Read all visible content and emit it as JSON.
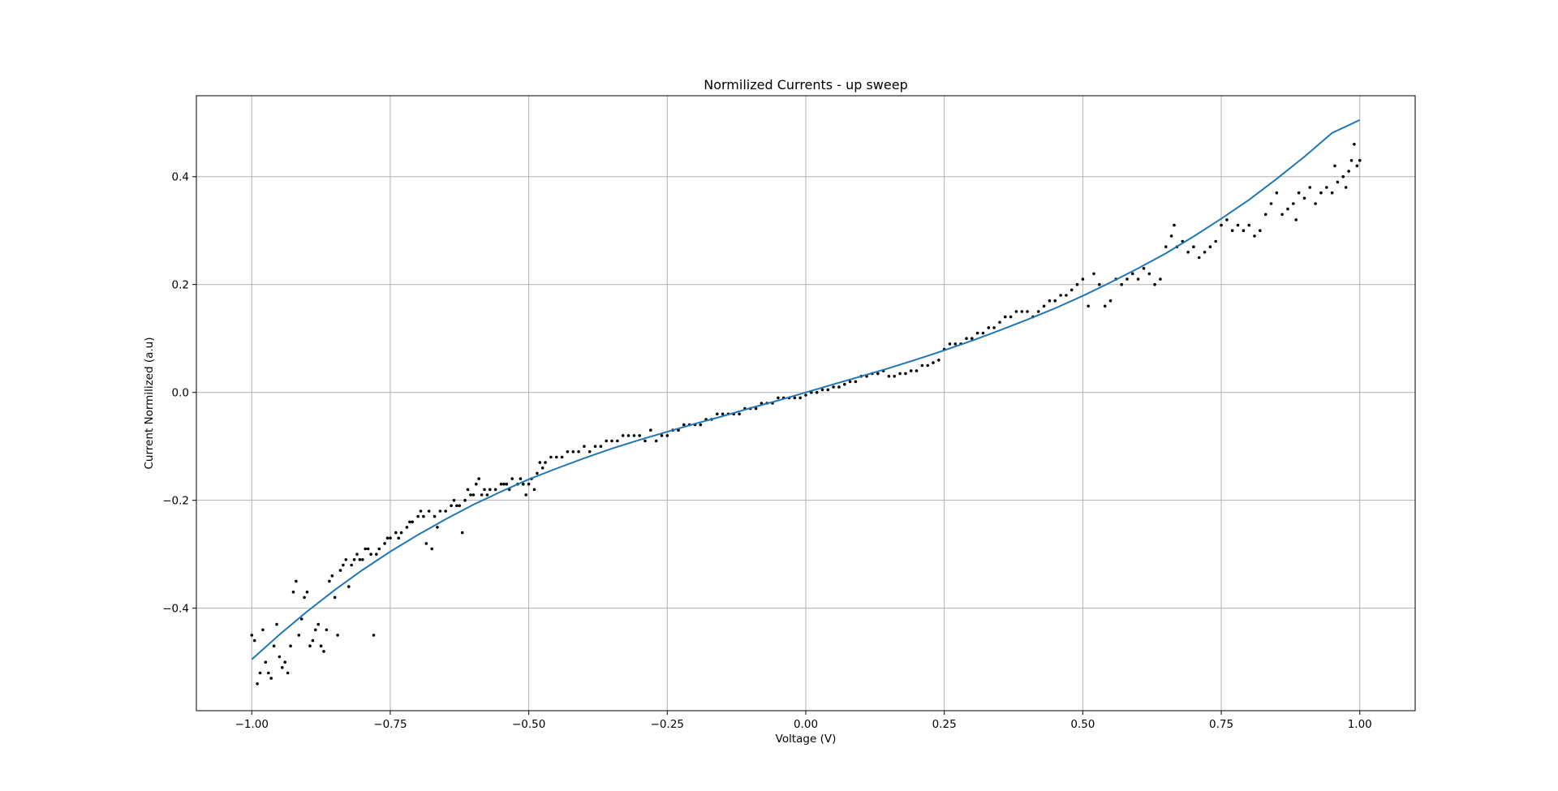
{
  "chart_data": {
    "type": "scatter",
    "title": "Normilized Currents - up sweep",
    "xlabel": "Voltage (V)",
    "ylabel": "Current Normilized (a.u)",
    "xlim": [
      -1.1,
      1.1
    ],
    "ylim": [
      -0.59,
      0.55
    ],
    "grid": true,
    "x_ticks": [
      {
        "value": -1.0,
        "label": "−1.00"
      },
      {
        "value": -0.75,
        "label": "−0.75"
      },
      {
        "value": -0.5,
        "label": "−0.50"
      },
      {
        "value": -0.25,
        "label": "−0.25"
      },
      {
        "value": 0.0,
        "label": "0.00"
      },
      {
        "value": 0.25,
        "label": "0.25"
      },
      {
        "value": 0.5,
        "label": "0.50"
      },
      {
        "value": 0.75,
        "label": "0.75"
      },
      {
        "value": 1.0,
        "label": "1.00"
      }
    ],
    "y_ticks": [
      {
        "value": -0.4,
        "label": "−0.4"
      },
      {
        "value": -0.2,
        "label": "−0.2"
      },
      {
        "value": 0.0,
        "label": "0.0"
      },
      {
        "value": 0.2,
        "label": "0.2"
      },
      {
        "value": 0.4,
        "label": "0.4"
      }
    ],
    "series": [
      {
        "kind": "scatter",
        "color": "#000000",
        "points": [
          [
            -1.0,
            -0.45
          ],
          [
            -0.995,
            -0.46
          ],
          [
            -0.99,
            -0.54
          ],
          [
            -0.985,
            -0.52
          ],
          [
            -0.98,
            -0.44
          ],
          [
            -0.975,
            -0.5
          ],
          [
            -0.97,
            -0.52
          ],
          [
            -0.965,
            -0.53
          ],
          [
            -0.96,
            -0.47
          ],
          [
            -0.955,
            -0.43
          ],
          [
            -0.95,
            -0.49
          ],
          [
            -0.945,
            -0.51
          ],
          [
            -0.94,
            -0.5
          ],
          [
            -0.935,
            -0.52
          ],
          [
            -0.93,
            -0.47
          ],
          [
            -0.925,
            -0.37
          ],
          [
            -0.92,
            -0.35
          ],
          [
            -0.915,
            -0.45
          ],
          [
            -0.91,
            -0.42
          ],
          [
            -0.905,
            -0.38
          ],
          [
            -0.9,
            -0.37
          ],
          [
            -0.895,
            -0.47
          ],
          [
            -0.89,
            -0.46
          ],
          [
            -0.885,
            -0.44
          ],
          [
            -0.88,
            -0.43
          ],
          [
            -0.875,
            -0.47
          ],
          [
            -0.87,
            -0.48
          ],
          [
            -0.865,
            -0.44
          ],
          [
            -0.86,
            -0.35
          ],
          [
            -0.855,
            -0.34
          ],
          [
            -0.85,
            -0.38
          ],
          [
            -0.845,
            -0.45
          ],
          [
            -0.84,
            -0.33
          ],
          [
            -0.835,
            -0.32
          ],
          [
            -0.83,
            -0.31
          ],
          [
            -0.825,
            -0.36
          ],
          [
            -0.82,
            -0.32
          ],
          [
            -0.815,
            -0.31
          ],
          [
            -0.81,
            -0.3
          ],
          [
            -0.805,
            -0.31
          ],
          [
            -0.8,
            -0.31
          ],
          [
            -0.795,
            -0.29
          ],
          [
            -0.79,
            -0.29
          ],
          [
            -0.785,
            -0.3
          ],
          [
            -0.78,
            -0.45
          ],
          [
            -0.775,
            -0.3
          ],
          [
            -0.77,
            -0.29
          ],
          [
            -0.76,
            -0.28
          ],
          [
            -0.755,
            -0.27
          ],
          [
            -0.75,
            -0.27
          ],
          [
            -0.74,
            -0.26
          ],
          [
            -0.735,
            -0.27
          ],
          [
            -0.73,
            -0.26
          ],
          [
            -0.72,
            -0.25
          ],
          [
            -0.715,
            -0.24
          ],
          [
            -0.71,
            -0.24
          ],
          [
            -0.7,
            -0.23
          ],
          [
            -0.695,
            -0.22
          ],
          [
            -0.69,
            -0.23
          ],
          [
            -0.685,
            -0.28
          ],
          [
            -0.68,
            -0.22
          ],
          [
            -0.675,
            -0.29
          ],
          [
            -0.67,
            -0.23
          ],
          [
            -0.665,
            -0.25
          ],
          [
            -0.66,
            -0.22
          ],
          [
            -0.65,
            -0.22
          ],
          [
            -0.64,
            -0.21
          ],
          [
            -0.635,
            -0.2
          ],
          [
            -0.63,
            -0.21
          ],
          [
            -0.625,
            -0.21
          ],
          [
            -0.62,
            -0.26
          ],
          [
            -0.615,
            -0.2
          ],
          [
            -0.61,
            -0.18
          ],
          [
            -0.605,
            -0.19
          ],
          [
            -0.6,
            -0.19
          ],
          [
            -0.595,
            -0.17
          ],
          [
            -0.59,
            -0.16
          ],
          [
            -0.585,
            -0.19
          ],
          [
            -0.58,
            -0.18
          ],
          [
            -0.575,
            -0.19
          ],
          [
            -0.57,
            -0.18
          ],
          [
            -0.56,
            -0.18
          ],
          [
            -0.55,
            -0.17
          ],
          [
            -0.545,
            -0.17
          ],
          [
            -0.54,
            -0.17
          ],
          [
            -0.535,
            -0.18
          ],
          [
            -0.53,
            -0.16
          ],
          [
            -0.52,
            -0.17
          ],
          [
            -0.515,
            -0.16
          ],
          [
            -0.51,
            -0.17
          ],
          [
            -0.505,
            -0.19
          ],
          [
            -0.5,
            -0.17
          ],
          [
            -0.495,
            -0.16
          ],
          [
            -0.49,
            -0.18
          ],
          [
            -0.485,
            -0.15
          ],
          [
            -0.48,
            -0.13
          ],
          [
            -0.475,
            -0.14
          ],
          [
            -0.47,
            -0.13
          ],
          [
            -0.46,
            -0.12
          ],
          [
            -0.45,
            -0.12
          ],
          [
            -0.44,
            -0.12
          ],
          [
            -0.43,
            -0.11
          ],
          [
            -0.42,
            -0.11
          ],
          [
            -0.41,
            -0.11
          ],
          [
            -0.4,
            -0.1
          ],
          [
            -0.39,
            -0.11
          ],
          [
            -0.38,
            -0.1
          ],
          [
            -0.37,
            -0.1
          ],
          [
            -0.36,
            -0.09
          ],
          [
            -0.35,
            -0.09
          ],
          [
            -0.34,
            -0.09
          ],
          [
            -0.33,
            -0.08
          ],
          [
            -0.32,
            -0.08
          ],
          [
            -0.31,
            -0.08
          ],
          [
            -0.3,
            -0.08
          ],
          [
            -0.29,
            -0.09
          ],
          [
            -0.28,
            -0.07
          ],
          [
            -0.27,
            -0.09
          ],
          [
            -0.26,
            -0.08
          ],
          [
            -0.25,
            -0.08
          ],
          [
            -0.24,
            -0.07
          ],
          [
            -0.23,
            -0.07
          ],
          [
            -0.22,
            -0.06
          ],
          [
            -0.21,
            -0.06
          ],
          [
            -0.2,
            -0.06
          ],
          [
            -0.19,
            -0.06
          ],
          [
            -0.18,
            -0.05
          ],
          [
            -0.17,
            -0.05
          ],
          [
            -0.16,
            -0.04
          ],
          [
            -0.15,
            -0.04
          ],
          [
            -0.14,
            -0.04
          ],
          [
            -0.13,
            -0.04
          ],
          [
            -0.12,
            -0.04
          ],
          [
            -0.11,
            -0.03
          ],
          [
            -0.1,
            -0.03
          ],
          [
            -0.09,
            -0.03
          ],
          [
            -0.08,
            -0.02
          ],
          [
            -0.07,
            -0.02
          ],
          [
            -0.06,
            -0.02
          ],
          [
            -0.05,
            -0.01
          ],
          [
            -0.04,
            -0.01
          ],
          [
            -0.03,
            -0.01
          ],
          [
            -0.02,
            -0.01
          ],
          [
            -0.01,
            -0.01
          ],
          [
            0.0,
            -0.005
          ],
          [
            0.01,
            0.0
          ],
          [
            0.02,
            0.0
          ],
          [
            0.03,
            0.005
          ],
          [
            0.04,
            0.005
          ],
          [
            0.05,
            0.01
          ],
          [
            0.06,
            0.01
          ],
          [
            0.07,
            0.015
          ],
          [
            0.08,
            0.02
          ],
          [
            0.09,
            0.02
          ],
          [
            0.1,
            0.03
          ],
          [
            0.11,
            0.03
          ],
          [
            0.12,
            0.035
          ],
          [
            0.13,
            0.035
          ],
          [
            0.14,
            0.04
          ],
          [
            0.15,
            0.03
          ],
          [
            0.16,
            0.03
          ],
          [
            0.17,
            0.035
          ],
          [
            0.18,
            0.035
          ],
          [
            0.19,
            0.04
          ],
          [
            0.2,
            0.04
          ],
          [
            0.21,
            0.05
          ],
          [
            0.22,
            0.05
          ],
          [
            0.23,
            0.055
          ],
          [
            0.24,
            0.06
          ],
          [
            0.25,
            0.08
          ],
          [
            0.26,
            0.09
          ],
          [
            0.27,
            0.09
          ],
          [
            0.28,
            0.09
          ],
          [
            0.29,
            0.1
          ],
          [
            0.3,
            0.1
          ],
          [
            0.31,
            0.11
          ],
          [
            0.32,
            0.11
          ],
          [
            0.33,
            0.12
          ],
          [
            0.34,
            0.12
          ],
          [
            0.35,
            0.13
          ],
          [
            0.36,
            0.14
          ],
          [
            0.37,
            0.14
          ],
          [
            0.38,
            0.15
          ],
          [
            0.39,
            0.15
          ],
          [
            0.4,
            0.15
          ],
          [
            0.41,
            0.14
          ],
          [
            0.42,
            0.15
          ],
          [
            0.43,
            0.16
          ],
          [
            0.44,
            0.17
          ],
          [
            0.45,
            0.17
          ],
          [
            0.46,
            0.18
          ],
          [
            0.47,
            0.18
          ],
          [
            0.48,
            0.19
          ],
          [
            0.49,
            0.2
          ],
          [
            0.5,
            0.21
          ],
          [
            0.51,
            0.16
          ],
          [
            0.52,
            0.22
          ],
          [
            0.53,
            0.2
          ],
          [
            0.54,
            0.16
          ],
          [
            0.55,
            0.17
          ],
          [
            0.56,
            0.21
          ],
          [
            0.57,
            0.2
          ],
          [
            0.58,
            0.21
          ],
          [
            0.59,
            0.22
          ],
          [
            0.6,
            0.21
          ],
          [
            0.61,
            0.23
          ],
          [
            0.62,
            0.22
          ],
          [
            0.63,
            0.2
          ],
          [
            0.64,
            0.21
          ],
          [
            0.65,
            0.27
          ],
          [
            0.66,
            0.29
          ],
          [
            0.665,
            0.31
          ],
          [
            0.67,
            0.27
          ],
          [
            0.68,
            0.28
          ],
          [
            0.69,
            0.26
          ],
          [
            0.7,
            0.27
          ],
          [
            0.71,
            0.25
          ],
          [
            0.72,
            0.26
          ],
          [
            0.73,
            0.27
          ],
          [
            0.74,
            0.28
          ],
          [
            0.75,
            0.31
          ],
          [
            0.76,
            0.32
          ],
          [
            0.77,
            0.3
          ],
          [
            0.78,
            0.31
          ],
          [
            0.79,
            0.3
          ],
          [
            0.8,
            0.31
          ],
          [
            0.81,
            0.29
          ],
          [
            0.82,
            0.3
          ],
          [
            0.83,
            0.33
          ],
          [
            0.84,
            0.35
          ],
          [
            0.85,
            0.37
          ],
          [
            0.86,
            0.33
          ],
          [
            0.87,
            0.34
          ],
          [
            0.88,
            0.35
          ],
          [
            0.885,
            0.32
          ],
          [
            0.89,
            0.37
          ],
          [
            0.9,
            0.36
          ],
          [
            0.91,
            0.38
          ],
          [
            0.92,
            0.35
          ],
          [
            0.93,
            0.37
          ],
          [
            0.94,
            0.38
          ],
          [
            0.95,
            0.37
          ],
          [
            0.955,
            0.42
          ],
          [
            0.96,
            0.39
          ],
          [
            0.97,
            0.4
          ],
          [
            0.975,
            0.38
          ],
          [
            0.98,
            0.41
          ],
          [
            0.985,
            0.43
          ],
          [
            0.99,
            0.46
          ],
          [
            0.995,
            0.42
          ],
          [
            1.0,
            0.43
          ]
        ]
      },
      {
        "kind": "line",
        "color": "#1f77b4",
        "points": [
          [
            -1.0,
            -0.495
          ],
          [
            -0.95,
            -0.449
          ],
          [
            -0.9,
            -0.406
          ],
          [
            -0.85,
            -0.366
          ],
          [
            -0.8,
            -0.329
          ],
          [
            -0.75,
            -0.295
          ],
          [
            -0.7,
            -0.264
          ],
          [
            -0.65,
            -0.235
          ],
          [
            -0.6,
            -0.208
          ],
          [
            -0.55,
            -0.184
          ],
          [
            -0.5,
            -0.161
          ],
          [
            -0.45,
            -0.141
          ],
          [
            -0.4,
            -0.122
          ],
          [
            -0.35,
            -0.104
          ],
          [
            -0.3,
            -0.088
          ],
          [
            -0.25,
            -0.073
          ],
          [
            -0.2,
            -0.058
          ],
          [
            -0.15,
            -0.044
          ],
          [
            -0.1,
            -0.029
          ],
          [
            -0.05,
            -0.015
          ],
          [
            0.0,
            0.0
          ],
          [
            0.05,
            0.015
          ],
          [
            0.1,
            0.03
          ],
          [
            0.15,
            0.045
          ],
          [
            0.2,
            0.061
          ],
          [
            0.25,
            0.078
          ],
          [
            0.3,
            0.096
          ],
          [
            0.35,
            0.115
          ],
          [
            0.4,
            0.135
          ],
          [
            0.45,
            0.156
          ],
          [
            0.5,
            0.179
          ],
          [
            0.55,
            0.204
          ],
          [
            0.6,
            0.23
          ],
          [
            0.65,
            0.258
          ],
          [
            0.7,
            0.289
          ],
          [
            0.75,
            0.322
          ],
          [
            0.8,
            0.357
          ],
          [
            0.85,
            0.396
          ],
          [
            0.9,
            0.437
          ],
          [
            0.95,
            0.481
          ],
          [
            1.0,
            0.505
          ]
        ]
      }
    ]
  }
}
